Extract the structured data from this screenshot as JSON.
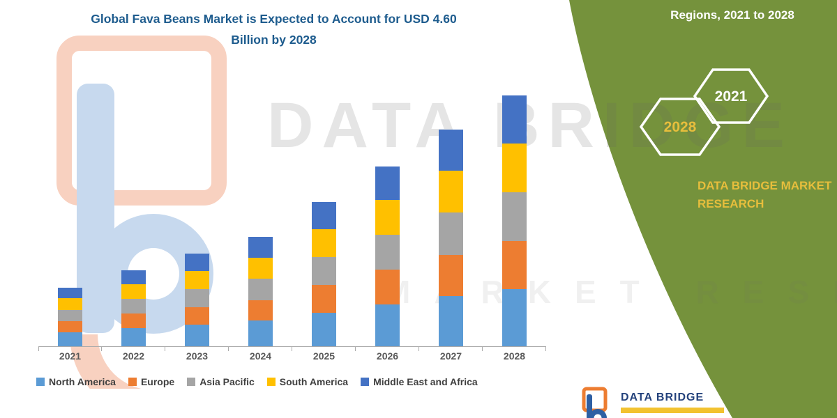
{
  "title": {
    "line1": "Global Fava Beans Market is Expected to Account for USD 4.60",
    "line2": "Billion by 2028"
  },
  "side_panel": {
    "heading": "Regions, 2021 to 2028",
    "hexagons": [
      {
        "label": "2028"
      },
      {
        "label": "2021"
      }
    ],
    "brand_line1": "DATA BRIDGE MARKET",
    "brand_line2": "RESEARCH",
    "panel_color": "#75923C",
    "accent_color": "#E7BE3C"
  },
  "watermark": {
    "line1": "DATA BRIDGE",
    "line2": "MARKET RESEARCH"
  },
  "footer_logo": {
    "brand": "DATA BRIDGE"
  },
  "chart_data": {
    "type": "bar",
    "stacked": true,
    "title": "Global Fava Beans Market is Expected to Account for USD 4.60 Billion by 2028",
    "categories": [
      "2021",
      "2022",
      "2023",
      "2024",
      "2025",
      "2026",
      "2027",
      "2028"
    ],
    "series": [
      {
        "name": "North America",
        "color": "#5B9BD5",
        "values": [
          0.26,
          0.33,
          0.4,
          0.47,
          0.62,
          0.77,
          0.92,
          1.05
        ]
      },
      {
        "name": "Europe",
        "color": "#ED7D31",
        "values": [
          0.2,
          0.27,
          0.32,
          0.38,
          0.5,
          0.63,
          0.76,
          0.88
        ]
      },
      {
        "name": "Asia Pacific",
        "color": "#A5A5A5",
        "values": [
          0.21,
          0.27,
          0.33,
          0.39,
          0.52,
          0.64,
          0.77,
          0.9
        ]
      },
      {
        "name": "South America",
        "color": "#FFC000",
        "values": [
          0.21,
          0.27,
          0.33,
          0.39,
          0.51,
          0.64,
          0.77,
          0.89
        ]
      },
      {
        "name": "Middle East and Africa",
        "color": "#4472C4",
        "values": [
          0.2,
          0.26,
          0.32,
          0.38,
          0.5,
          0.62,
          0.75,
          0.88
        ]
      }
    ],
    "totals": [
      1.08,
      1.4,
      1.7,
      2.01,
      2.65,
      3.3,
      3.97,
      4.6
    ],
    "ylim": [
      0,
      4.6
    ],
    "grid": false,
    "legend_position": "bottom",
    "xlabel": "",
    "ylabel": ""
  }
}
